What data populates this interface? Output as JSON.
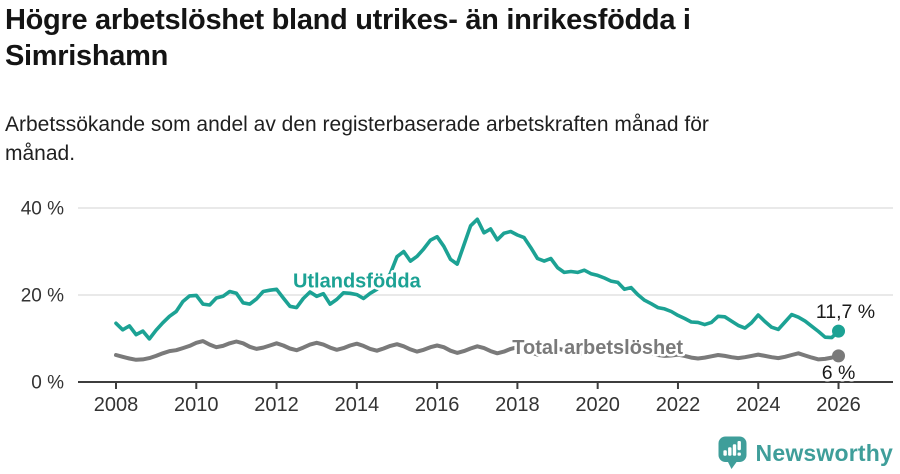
{
  "header": {
    "title_lines": [
      "Högre arbetslöshet bland utrikes- än inrikesfödda i",
      "Simrishamn"
    ],
    "subtitle_lines": [
      "Arbetssökande som andel av den registerbaserade arbetskraften månad för",
      "månad."
    ]
  },
  "footer": {
    "brand": "Newsworthy",
    "brand_color": "#3f9e9a",
    "logo_icon": "bar-chart-speech-bubble-icon"
  },
  "chart_data": {
    "type": "line",
    "title": "Högre arbetslöshet bland utrikes- än inrikesfödda i Simrishamn",
    "subtitle": "Arbetssökande som andel av den registerbaserade arbetskraften månad för månad.",
    "x_start_year": 2008,
    "points_per_year": 6,
    "x_ticks": [
      2008,
      2010,
      2012,
      2014,
      2016,
      2018,
      2020,
      2022,
      2024,
      2026
    ],
    "x_tick_labels": [
      "2008",
      "2010",
      "2012",
      "2014",
      "2016",
      "2018",
      "2020",
      "2022",
      "2024",
      "2026"
    ],
    "y_ticks": [
      0,
      20,
      40
    ],
    "y_tick_labels": [
      "0 %",
      "20 %",
      "40 %"
    ],
    "ylim": [
      0,
      45
    ],
    "grid": "horizontal",
    "legend": "inline-labels",
    "axis_color": "#3d3d3d",
    "grid_color": "#e2e2e2",
    "tick_label_color": "#333333",
    "value_label_color": "#1a1a1a",
    "series": [
      {
        "id": "utlandsfodda",
        "name": "Utlandsfödda",
        "color": "#1ca294",
        "line_width": 3.6,
        "label_at": {
          "year": 2014.0,
          "pct": 21.7
        },
        "end_label": "11,7 %",
        "end_label_position": "above",
        "end_value": 11.7,
        "values": [
          13.5,
          12.0,
          12.9,
          10.9,
          11.7,
          9.9,
          11.9,
          13.6,
          15.1,
          16.2,
          18.5,
          19.8,
          19.9,
          17.9,
          17.7,
          19.3,
          19.7,
          20.8,
          20.4,
          18.2,
          17.9,
          19.1,
          20.8,
          21.1,
          21.3,
          19.3,
          17.4,
          17.1,
          19.2,
          20.7,
          19.7,
          20.3,
          17.9,
          19.0,
          20.5,
          20.4,
          20.1,
          19.2,
          20.4,
          21.3,
          22.8,
          24.9,
          28.8,
          30.0,
          27.8,
          28.9,
          30.6,
          32.6,
          33.4,
          31.2,
          28.2,
          27.1,
          31.5,
          35.9,
          37.4,
          34.3,
          35.2,
          32.7,
          34.2,
          34.6,
          33.8,
          33.2,
          30.9,
          28.4,
          27.8,
          28.4,
          26.3,
          25.2,
          25.4,
          25.2,
          25.7,
          24.9,
          24.5,
          23.9,
          23.2,
          22.9,
          21.3,
          21.7,
          20.1,
          18.8,
          18.0,
          17.1,
          16.8,
          16.2,
          15.3,
          14.6,
          13.8,
          13.7,
          13.2,
          13.7,
          15.1,
          15.0,
          14.0,
          13.0,
          12.4,
          13.6,
          15.4,
          13.9,
          12.6,
          12.1,
          13.8,
          15.5,
          14.9,
          14.0,
          12.8,
          11.6,
          10.3,
          10.2,
          11.7
        ]
      },
      {
        "id": "total",
        "name": "Total arbetslöshet",
        "color": "#7a7a7a",
        "line_width": 4,
        "label_at": {
          "year": 2020.0,
          "pct": 6.4
        },
        "end_label": "6 %",
        "end_label_position": "below",
        "end_value": 6.0,
        "values": [
          6.2,
          5.8,
          5.4,
          5.1,
          5.2,
          5.5,
          6.0,
          6.6,
          7.1,
          7.3,
          7.8,
          8.3,
          9.0,
          9.4,
          8.6,
          8.0,
          8.3,
          8.9,
          9.3,
          8.9,
          8.1,
          7.6,
          7.9,
          8.4,
          8.9,
          8.4,
          7.7,
          7.3,
          7.9,
          8.6,
          9.0,
          8.6,
          7.9,
          7.4,
          7.8,
          8.4,
          8.8,
          8.3,
          7.6,
          7.2,
          7.7,
          8.3,
          8.7,
          8.2,
          7.5,
          7.0,
          7.4,
          8.0,
          8.4,
          8.0,
          7.2,
          6.7,
          7.1,
          7.7,
          8.2,
          7.8,
          7.1,
          6.6,
          7.0,
          7.6,
          8.0,
          7.5,
          6.8,
          6.3,
          6.7,
          7.3,
          7.7,
          7.3,
          6.7,
          6.4,
          6.8,
          7.2,
          7.5,
          7.4,
          7.3,
          7.1,
          7.0,
          7.2,
          7.3,
          7.0,
          6.6,
          6.2,
          6.0,
          6.1,
          6.3,
          6.0,
          5.6,
          5.4,
          5.6,
          5.9,
          6.2,
          6.0,
          5.7,
          5.5,
          5.7,
          6.0,
          6.3,
          6.0,
          5.7,
          5.5,
          5.8,
          6.2,
          6.6,
          6.1,
          5.6,
          5.2,
          5.3,
          5.6,
          6.0
        ]
      }
    ]
  }
}
